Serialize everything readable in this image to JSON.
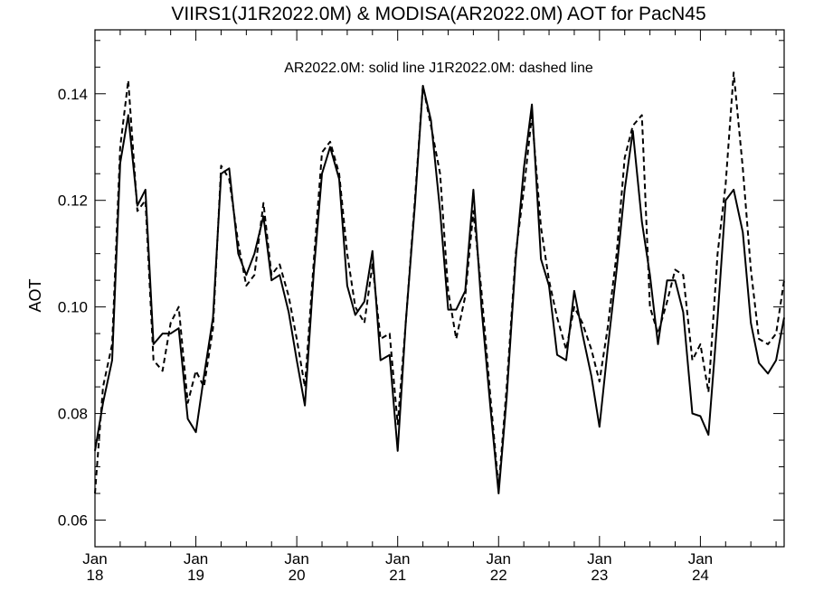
{
  "chart_data": {
    "type": "line",
    "title": "VIIRS1(J1R2022.0M) & MODISA(AR2022.0M)  AOT for PacN45",
    "annotation": "AR2022.0M: solid line   J1R2022.0M: dashed line",
    "xlabel": "",
    "ylabel": "AOT",
    "xlim": [
      2018.0,
      2024.83
    ],
    "ylim": [
      0.055,
      0.152
    ],
    "yticks": [
      0.06,
      0.08,
      0.1,
      0.12,
      0.14
    ],
    "ytick_labels": [
      "0.06",
      "0.08",
      "0.10",
      "0.12",
      "0.14"
    ],
    "xticks": [
      {
        "x": 2018,
        "month": "Jan",
        "year": "18"
      },
      {
        "x": 2019,
        "month": "Jan",
        "year": "19"
      },
      {
        "x": 2020,
        "month": "Jan",
        "year": "20"
      },
      {
        "x": 2021,
        "month": "Jan",
        "year": "21"
      },
      {
        "x": 2022,
        "month": "Jan",
        "year": "22"
      },
      {
        "x": 2023,
        "month": "Jan",
        "year": "23"
      },
      {
        "x": 2024,
        "month": "Jan",
        "year": "24"
      }
    ],
    "grid": false,
    "series": [
      {
        "name": "AR2022.0M",
        "style": "solid",
        "color": "#000000",
        "x": [
          2018.0,
          2018.08,
          2018.17,
          2018.25,
          2018.33,
          2018.42,
          2018.5,
          2018.58,
          2018.67,
          2018.75,
          2018.83,
          2018.92,
          2019.0,
          2019.08,
          2019.17,
          2019.25,
          2019.33,
          2019.42,
          2019.5,
          2019.58,
          2019.67,
          2019.75,
          2019.83,
          2019.92,
          2020.0,
          2020.08,
          2020.17,
          2020.25,
          2020.33,
          2020.42,
          2020.5,
          2020.58,
          2020.67,
          2020.75,
          2020.83,
          2020.92,
          2021.0,
          2021.08,
          2021.17,
          2021.25,
          2021.33,
          2021.42,
          2021.5,
          2021.58,
          2021.67,
          2021.75,
          2021.83,
          2021.92,
          2022.0,
          2022.08,
          2022.17,
          2022.25,
          2022.33,
          2022.42,
          2022.5,
          2022.58,
          2022.67,
          2022.75,
          2022.83,
          2022.92,
          2023.0,
          2023.08,
          2023.17,
          2023.25,
          2023.33,
          2023.42,
          2023.5,
          2023.58,
          2023.67,
          2023.75,
          2023.83,
          2023.92,
          2024.0,
          2024.08,
          2024.17,
          2024.25,
          2024.33,
          2024.42,
          2024.5,
          2024.58,
          2024.67,
          2024.75,
          2024.83
        ],
        "values": [
          0.073,
          0.082,
          0.09,
          0.127,
          0.136,
          0.119,
          0.122,
          0.093,
          0.095,
          0.095,
          0.096,
          0.079,
          0.0765,
          0.087,
          0.098,
          0.125,
          0.126,
          0.11,
          0.106,
          0.11,
          0.117,
          0.105,
          0.106,
          0.099,
          0.09,
          0.0815,
          0.107,
          0.125,
          0.13,
          0.124,
          0.104,
          0.0985,
          0.101,
          0.1105,
          0.09,
          0.091,
          0.073,
          0.097,
          0.119,
          0.1415,
          0.135,
          0.118,
          0.0995,
          0.0995,
          0.103,
          0.122,
          0.1,
          0.081,
          0.065,
          0.083,
          0.109,
          0.126,
          0.138,
          0.109,
          0.104,
          0.091,
          0.09,
          0.103,
          0.095,
          0.087,
          0.0775,
          0.092,
          0.107,
          0.122,
          0.133,
          0.116,
          0.106,
          0.093,
          0.105,
          0.105,
          0.099,
          0.08,
          0.0795,
          0.076,
          0.098,
          0.12,
          0.122,
          0.114,
          0.097,
          0.0895,
          0.0875,
          0.09,
          0.098
        ]
      },
      {
        "name": "J1R2022.0M",
        "style": "dashed",
        "color": "#000000",
        "x": [
          2018.0,
          2018.08,
          2018.17,
          2018.25,
          2018.33,
          2018.42,
          2018.5,
          2018.58,
          2018.67,
          2018.75,
          2018.83,
          2018.92,
          2019.0,
          2019.08,
          2019.17,
          2019.25,
          2019.33,
          2019.42,
          2019.5,
          2019.58,
          2019.67,
          2019.75,
          2019.83,
          2019.92,
          2020.0,
          2020.08,
          2020.17,
          2020.25,
          2020.33,
          2020.42,
          2020.5,
          2020.58,
          2020.67,
          2020.75,
          2020.83,
          2020.92,
          2021.0,
          2021.08,
          2021.17,
          2021.25,
          2021.33,
          2021.42,
          2021.5,
          2021.58,
          2021.67,
          2021.75,
          2021.83,
          2021.92,
          2022.0,
          2022.08,
          2022.17,
          2022.25,
          2022.33,
          2022.42,
          2022.5,
          2022.58,
          2022.67,
          2022.75,
          2022.83,
          2022.92,
          2023.0,
          2023.08,
          2023.17,
          2023.25,
          2023.33,
          2023.42,
          2023.5,
          2023.58,
          2023.67,
          2023.75,
          2023.83,
          2023.92,
          2024.0,
          2024.08,
          2024.17,
          2024.25,
          2024.33,
          2024.42,
          2024.5,
          2024.58,
          2024.67,
          2024.75,
          2024.83
        ],
        "values": [
          0.065,
          0.085,
          0.093,
          0.13,
          0.1425,
          0.118,
          0.12,
          0.09,
          0.088,
          0.097,
          0.1,
          0.082,
          0.088,
          0.085,
          0.096,
          0.1265,
          0.124,
          0.112,
          0.104,
          0.106,
          0.1195,
          0.106,
          0.108,
          0.102,
          0.094,
          0.085,
          0.109,
          0.129,
          0.131,
          0.125,
          0.11,
          0.1,
          0.097,
          0.108,
          0.094,
          0.095,
          0.078,
          0.097,
          0.12,
          0.1415,
          0.134,
          0.125,
          0.103,
          0.094,
          0.102,
          0.118,
          0.103,
          0.083,
          0.066,
          0.085,
          0.11,
          0.122,
          0.136,
          0.115,
          0.105,
          0.098,
          0.092,
          0.1,
          0.097,
          0.092,
          0.086,
          0.096,
          0.11,
          0.128,
          0.134,
          0.136,
          0.1,
          0.095,
          0.101,
          0.107,
          0.106,
          0.09,
          0.093,
          0.084,
          0.11,
          0.123,
          0.144,
          0.126,
          0.107,
          0.094,
          0.093,
          0.095,
          0.105
        ]
      }
    ]
  }
}
